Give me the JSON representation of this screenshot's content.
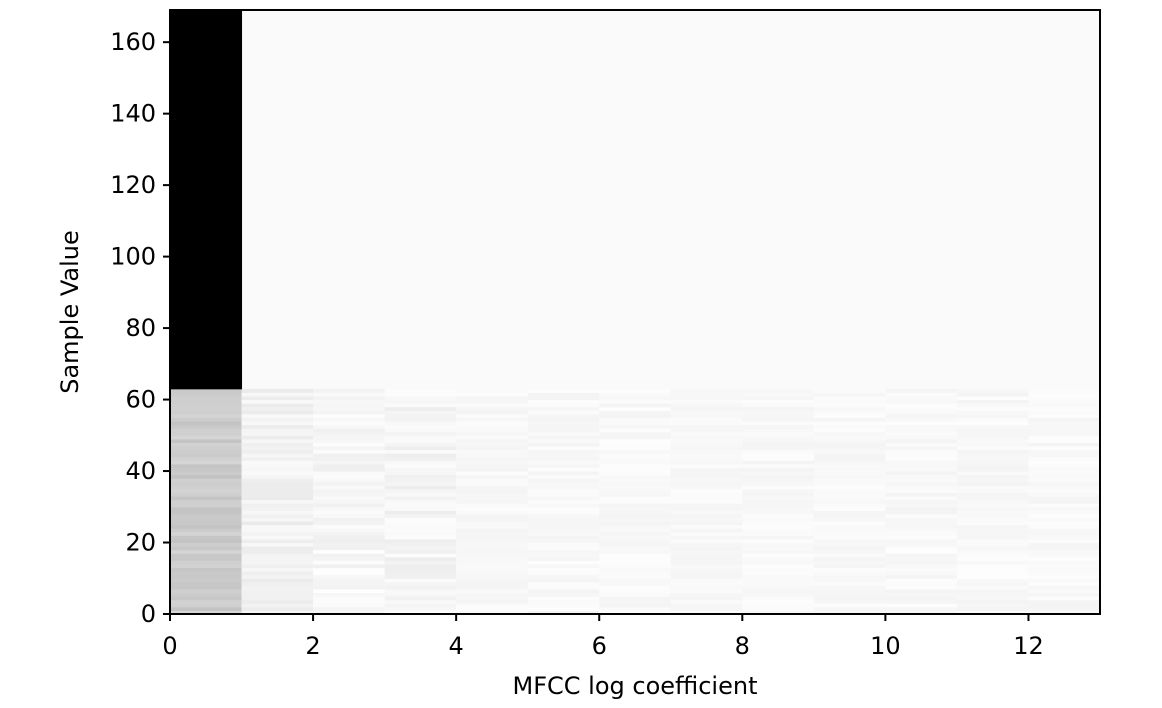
{
  "chart_data": {
    "type": "heatmap",
    "title": "",
    "xlabel": "MFCC log coefficient",
    "ylabel": "Sample Value",
    "xlim": [
      0,
      13
    ],
    "ylim": [
      0,
      169
    ],
    "xticks": [
      0,
      2,
      4,
      6,
      8,
      10,
      12
    ],
    "yticks": [
      0,
      20,
      40,
      60,
      80,
      100,
      120,
      140,
      160
    ],
    "colormap": "gray_r",
    "grid": false,
    "background_cell_value": 0.02,
    "bands": [
      {
        "x": [
          0,
          1
        ],
        "y": [
          63,
          169
        ],
        "value": 1.0
      }
    ],
    "data_region": {
      "x": [
        0,
        13
      ],
      "y": [
        0,
        63
      ]
    },
    "column_base_values": [
      0.2,
      0.04,
      0.02,
      0.03,
      0.02,
      0.02,
      0.02,
      0.02,
      0.02,
      0.02,
      0.02,
      0.02,
      0.02
    ],
    "column_variation": 0.06
  }
}
